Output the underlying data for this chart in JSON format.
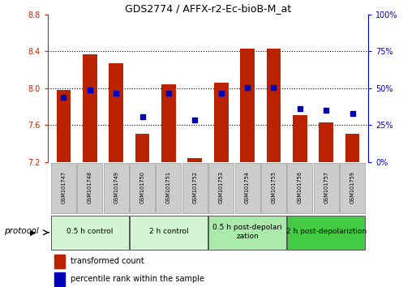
{
  "title": "GDS2774 / AFFX-r2-Ec-bioB-M_at",
  "samples": [
    "GSM101747",
    "GSM101748",
    "GSM101749",
    "GSM101750",
    "GSM101751",
    "GSM101752",
    "GSM101753",
    "GSM101754",
    "GSM101755",
    "GSM101756",
    "GSM101757",
    "GSM101759"
  ],
  "red_values": [
    7.98,
    8.37,
    8.27,
    7.51,
    8.04,
    7.24,
    8.06,
    8.43,
    8.43,
    7.71,
    7.63,
    7.51
  ],
  "blue_values": [
    7.9,
    7.98,
    7.95,
    7.69,
    7.95,
    7.66,
    7.95,
    8.01,
    8.01,
    7.78,
    7.76,
    7.73
  ],
  "y_min": 7.2,
  "y_max": 8.8,
  "y_ticks_left": [
    7.2,
    7.6,
    8.0,
    8.4,
    8.8
  ],
  "y_ticks_right_vals": [
    0,
    25,
    50,
    75,
    100
  ],
  "bar_color": "#bb2200",
  "dot_color": "#0000bb",
  "bar_width": 0.55,
  "groups": [
    {
      "label": "0.5 h control",
      "start": 0,
      "end": 3,
      "color": "#d4f5d4"
    },
    {
      "label": "2 h control",
      "start": 3,
      "end": 6,
      "color": "#d4f5d4"
    },
    {
      "label": "0.5 h post-depolari\nzation",
      "start": 6,
      "end": 9,
      "color": "#aaeaaa"
    },
    {
      "label": "2 h post-depolariztion",
      "start": 9,
      "end": 12,
      "color": "#44cc44"
    }
  ],
  "protocol_label": "protocol",
  "legend_red": "transformed count",
  "legend_blue": "percentile rank within the sample",
  "tick_color_left": "#cc2200",
  "tick_color_right": "#0000cc",
  "sample_bg_color": "#cccccc",
  "dotted_lines": [
    7.6,
    8.0,
    8.4
  ]
}
